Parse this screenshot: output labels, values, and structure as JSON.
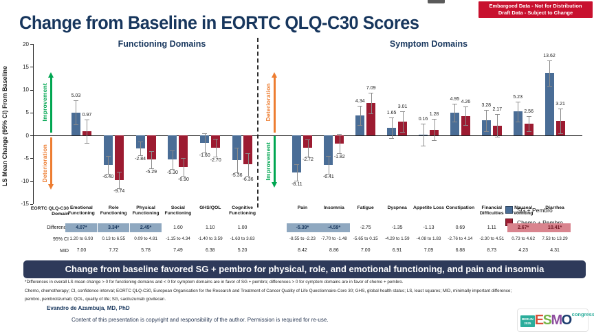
{
  "page": {
    "title": "Change from Baseline in EORTC QLQ-C30 Scores"
  },
  "badge": {
    "line1": "Embargoed Data - Not for Distribution",
    "line2": "Draft Data - Subject to Change"
  },
  "chart_data": {
    "type": "bar",
    "ylabel": "LS Mean Change (95% CI) From Baseline",
    "ylim": [
      -15,
      20
    ],
    "y_ticks": [
      20,
      15,
      10,
      5,
      0,
      -5,
      -10,
      -15
    ],
    "grid": false,
    "legend_position": "right-middle",
    "groups": [
      {
        "title": "Functioning Domains",
        "categories": [
          "Emotional Functioning",
          "Role Functioning",
          "Physical Functioning",
          "Social Functioning",
          "GHS/QOL",
          "Cognitive Functioning"
        ],
        "series": [
          {
            "name": "SG + Pembro",
            "values": [
              5.03,
              -6.4,
              -2.84,
              -5.3,
              -1.6,
              -5.36
            ],
            "ci_halfwidth": [
              2.65,
              1.95,
              1.55,
              2.05,
              2.1,
              2.7
            ]
          },
          {
            "name": "Chemo + Pembro",
            "values": [
              0.97,
              -9.74,
              -5.29,
              -6.9,
              -2.7,
              -6.36
            ],
            "ci_halfwidth": [
              2.55,
              1.8,
              1.9,
              1.95,
              2.0,
              2.5
            ]
          }
        ]
      },
      {
        "title": "Symptom Domains",
        "categories": [
          "Pain",
          "Insomnia",
          "Fatigue",
          "Dyspnea",
          "Appetite Loss",
          "Constipation",
          "Financial Difficulties",
          "Nausea/Vomiting",
          "Diarrhea"
        ],
        "series": [
          {
            "name": "SG + Pembro",
            "values": [
              -8.11,
              -6.41,
              4.34,
              1.65,
              0.16,
              4.95,
              3.28,
              5.23,
              13.62
            ],
            "ci_halfwidth": [
              1.85,
              1.95,
              2.1,
              2.25,
              2.35,
              1.95,
              2.3,
              2.2,
              2.8
            ]
          },
          {
            "name": "Chemo + Pembro",
            "values": [
              -2.72,
              -1.82,
              7.09,
              3.01,
              1.28,
              4.26,
              2.17,
              2.56,
              3.21
            ],
            "ci_halfwidth": [
              1.9,
              2.1,
              2.25,
              2.3,
              2.3,
              2.05,
              2.45,
              1.65,
              2.7
            ]
          }
        ]
      }
    ],
    "annotations": {
      "functioning_up": "Improvement",
      "functioning_down": "Deterioration",
      "symptom_up": "Deterioration",
      "symptom_down": "Improvement"
    }
  },
  "legend": [
    {
      "label": "SG + Pembro",
      "color": "#4A6D96"
    },
    {
      "label": "Chemo + Pembro",
      "color": "#9C1B31"
    }
  ],
  "table": {
    "row_labels": {
      "domain": "EORTC QLQ-C30\nDomain",
      "difference": "Difference",
      "ci": "95% CI",
      "mid": "MID"
    },
    "columns": [
      {
        "domain": "Emotional\nFunctioning",
        "difference": "4.07*",
        "highlight": "blue",
        "ci": "1.20 to 6.93",
        "mid": "7.00"
      },
      {
        "domain": "Role\nFunctioning",
        "difference": "3.34*",
        "highlight": "blue",
        "ci": "0.13 to 6.55",
        "mid": "7.72"
      },
      {
        "domain": "Physical\nFunctioning",
        "difference": "2.45*",
        "highlight": "blue",
        "ci": "0.09 to 4.81",
        "mid": "5.78"
      },
      {
        "domain": "Social\nFunctioning",
        "difference": "1.60",
        "highlight": "none",
        "ci": "-1.15 to 4.34",
        "mid": "7.49"
      },
      {
        "domain": "GHS/QOL",
        "difference": "1.10",
        "highlight": "none",
        "ci": "-1.40 to 3.59",
        "mid": "6.38"
      },
      {
        "domain": "Cognitive\nFunctioning",
        "difference": "1.00",
        "highlight": "none",
        "ci": "-1.63 to 3.63",
        "mid": "5.20"
      },
      {
        "domain": "Pain",
        "difference": "-5.39*",
        "highlight": "blue",
        "ci": "-8.55 to -2.23",
        "mid": "8.42"
      },
      {
        "domain": "Insomnia",
        "difference": "-4.59*",
        "highlight": "blue",
        "ci": "-7.70 to -1.48",
        "mid": "8.86"
      },
      {
        "domain": "Fatigue",
        "difference": "-2.75",
        "highlight": "none",
        "ci": "-5.65 to 0.15",
        "mid": "7.00"
      },
      {
        "domain": "Dyspnea",
        "difference": "-1.35",
        "highlight": "none",
        "ci": "-4.29 to 1.59",
        "mid": "6.91"
      },
      {
        "domain": "Appetite Loss",
        "difference": "-1.13",
        "highlight": "none",
        "ci": "-4.08 to 1.83",
        "mid": "7.09"
      },
      {
        "domain": "Constipation",
        "difference": "0.69",
        "highlight": "none",
        "ci": "-2.76 to 4.14",
        "mid": "6.88"
      },
      {
        "domain": "Financial\nDifficulties",
        "difference": "1.11",
        "highlight": "none",
        "ci": "-2.30 to 4.51",
        "mid": "8.73"
      },
      {
        "domain": "Nausea/\nVomiting",
        "difference": "2.67*",
        "highlight": "pink",
        "ci": "0.73 to 4.62",
        "mid": "4.23"
      },
      {
        "domain": "Diarrhea",
        "difference": "10.41*",
        "highlight": "pink",
        "ci": "7.53 to 13.29",
        "mid": "4.31"
      }
    ]
  },
  "banner": "Change from baseline favored SG + pembro for physical, role, and emotional functioning, and pain and insomnia",
  "footnotes": [
    "*Differences in overall LS mean change > 0 for functioning domains and < 0 for symptom domains are in favor of SG + pembro; differences > 0 for symptom domains are in favor of chemo + pembro.",
    "Chemo, chemotherapy; CI, confidence interval; EORTC QLQ-C30, European Organisation for the Research and Treatment of Cancer Quality of Life Questionnaire-Core 30; GHS, global health status; LS, least squares; MID, minimally important difference;",
    "pembro, pembrolizumab; QOL, quality of life; SG, sacituzumab govitecan."
  ],
  "author": "Evandro de Azambuja, MD, PhD",
  "copyright_line": "Content of this presentation is copyright and responsibility of the author. Permission is required for re-use.",
  "logo": {
    "berlin": "BERLIN",
    "year": "2025",
    "letters": [
      "E",
      "S",
      "M",
      "O"
    ],
    "congress": "congress"
  },
  "colors": {
    "sg": "#4A6D96",
    "chemo": "#9C1B31",
    "title": "#17365D",
    "banner_bg": "#2E3A5A",
    "badge_bg": "#C8102E",
    "highlight_blue": "#8FA8C0",
    "highlight_pink": "#D9848E",
    "improvement_green": "#00A651",
    "deterioration_orange": "#ED7D31"
  }
}
